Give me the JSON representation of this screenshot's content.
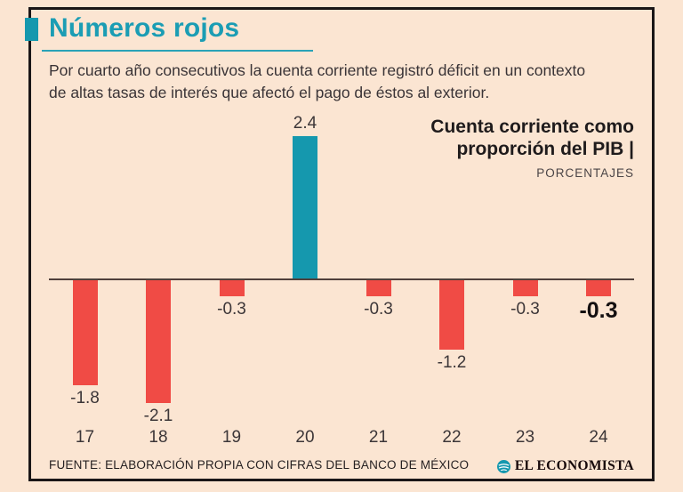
{
  "colors": {
    "background": "#FBE5D2",
    "frame": "#1A1617",
    "accent_teal": "#1598AE",
    "bar_red": "#F04B45",
    "text_dark": "#262122"
  },
  "header": {
    "title": "Números rojos",
    "subtitle_lines": [
      "Por cuarto año consecutivos la cuenta corriente registró déficit en un contexto",
      "de altas tasas de interés que afectó el pago de éstos al exterior."
    ]
  },
  "chart": {
    "title_lines": [
      "Cuenta corriente como",
      "proporción del PIB |"
    ],
    "unit_label": "PORCENTAJES"
  },
  "chart_data": {
    "type": "bar",
    "title": "Cuenta corriente como proporción del PIB",
    "ylabel": "PORCENTAJES",
    "categories": [
      "17",
      "18",
      "19",
      "20",
      "21",
      "22",
      "23",
      "24"
    ],
    "values": [
      -1.8,
      -2.1,
      -0.3,
      2.4,
      -0.3,
      -1.2,
      -0.3,
      -0.3
    ],
    "labels": [
      "-1.8",
      "-2.1",
      "-0.3",
      "2.4",
      "-0.3",
      "-1.2",
      "-0.3",
      "-0.3"
    ],
    "positive_color": "#1598AE",
    "negative_color": "#F04B45",
    "bold_label_index": 7,
    "ylim": [
      -2.4,
      2.6
    ],
    "grid": false,
    "legend": false
  },
  "footer": {
    "source": "FUENTE: ELABORACIÓN PROPIA CON CIFRAS DEL BANCO DE MÉXICO",
    "brand": "EL ECONOMISTA"
  }
}
